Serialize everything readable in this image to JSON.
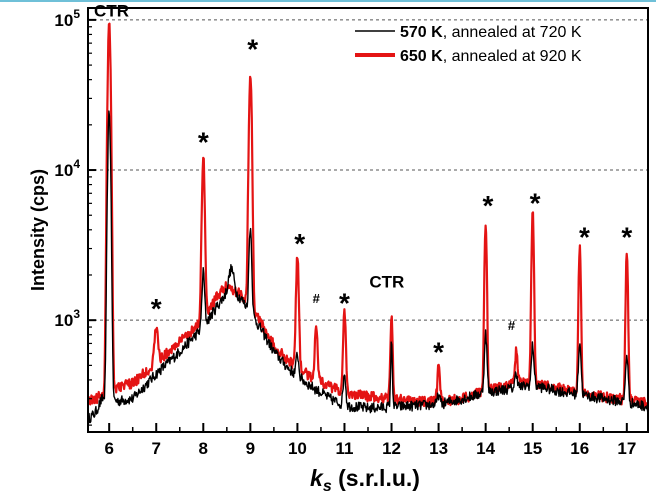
{
  "chart_data": {
    "type": "line",
    "xlabel_main": "k",
    "xlabel_sub": "s",
    "xlabel_rest": " (s.r.l.u.)",
    "ylabel": "Intensity (cps)",
    "xlim": [
      5.55,
      17.45
    ],
    "ylim": [
      180,
      120000
    ],
    "yscale": "log",
    "x_ticks": [
      "6",
      "7",
      "8",
      "9",
      "10",
      "11",
      "12",
      "13",
      "14",
      "15",
      "16",
      "17"
    ],
    "y_ticks": [
      {
        "value": 1000,
        "base": "10",
        "exp": "3"
      },
      {
        "value": 10000,
        "base": "10",
        "exp": "4"
      },
      {
        "value": 100000,
        "base": "10",
        "exp": "5"
      }
    ],
    "grid": {
      "horizontal_dashed": true
    },
    "legend_position": "top-right",
    "series": [
      {
        "name_bold": "570 K",
        "name_rest": ", annealed at 720 K",
        "color": "#000000",
        "baseline": [
          [
            5.55,
            220
          ],
          [
            5.7,
            240
          ],
          [
            5.85,
            300
          ],
          [
            6.2,
            290
          ],
          [
            6.5,
            300
          ],
          [
            7.0,
            440
          ],
          [
            7.5,
            620
          ],
          [
            8.0,
            900
          ],
          [
            8.3,
            1250
          ],
          [
            8.55,
            1600
          ],
          [
            8.8,
            1400
          ],
          [
            9.2,
            900
          ],
          [
            9.5,
            620
          ],
          [
            9.8,
            480
          ],
          [
            10.2,
            380
          ],
          [
            10.7,
            300
          ],
          [
            11.0,
            270
          ],
          [
            11.5,
            260
          ],
          [
            12.0,
            265
          ],
          [
            12.5,
            270
          ],
          [
            13.0,
            275
          ],
          [
            13.5,
            300
          ],
          [
            14.0,
            330
          ],
          [
            14.5,
            350
          ],
          [
            15.0,
            370
          ],
          [
            15.5,
            340
          ],
          [
            16.0,
            320
          ],
          [
            16.5,
            300
          ],
          [
            17.0,
            285
          ],
          [
            17.45,
            265
          ]
        ],
        "peaks": [
          [
            6.0,
            24000,
            0.03
          ],
          [
            8.0,
            2100,
            0.03
          ],
          [
            8.6,
            2200,
            0.06
          ],
          [
            9.0,
            4200,
            0.03
          ],
          [
            10.0,
            600,
            0.03
          ],
          [
            11.0,
            450,
            0.03
          ],
          [
            12.0,
            700,
            0.02
          ],
          [
            13.0,
            320,
            0.03
          ],
          [
            14.0,
            820,
            0.03
          ],
          [
            14.65,
            450,
            0.03
          ],
          [
            15.0,
            680,
            0.03
          ],
          [
            16.0,
            720,
            0.03
          ],
          [
            17.0,
            590,
            0.03
          ]
        ]
      },
      {
        "name_bold": "650 K",
        "name_rest": ", annealed at 920 K",
        "color": "#e41414",
        "baseline": [
          [
            5.55,
            290
          ],
          [
            5.8,
            310
          ],
          [
            6.2,
            360
          ],
          [
            6.5,
            380
          ],
          [
            7.0,
            520
          ],
          [
            7.5,
            720
          ],
          [
            8.0,
            1000
          ],
          [
            8.3,
            1450
          ],
          [
            8.5,
            1700
          ],
          [
            8.8,
            1500
          ],
          [
            9.2,
            1000
          ],
          [
            9.5,
            680
          ],
          [
            9.8,
            540
          ],
          [
            10.2,
            440
          ],
          [
            10.7,
            360
          ],
          [
            11.0,
            330
          ],
          [
            11.5,
            310
          ],
          [
            12.0,
            300
          ],
          [
            12.5,
            290
          ],
          [
            13.0,
            285
          ],
          [
            13.5,
            300
          ],
          [
            14.0,
            340
          ],
          [
            14.5,
            370
          ],
          [
            15.0,
            390
          ],
          [
            15.5,
            355
          ],
          [
            16.0,
            330
          ],
          [
            16.5,
            310
          ],
          [
            17.0,
            295
          ],
          [
            17.45,
            280
          ]
        ],
        "peaks": [
          [
            6.0,
            97000,
            0.03
          ],
          [
            6.3,
            370,
            0.04
          ],
          [
            7.0,
            900,
            0.04
          ],
          [
            8.0,
            12000,
            0.03
          ],
          [
            9.0,
            44000,
            0.03
          ],
          [
            10.0,
            2600,
            0.03
          ],
          [
            10.4,
            950,
            0.03
          ],
          [
            11.0,
            1100,
            0.03
          ],
          [
            12.0,
            1080,
            0.025
          ],
          [
            13.0,
            490,
            0.03
          ],
          [
            14.0,
            4500,
            0.025
          ],
          [
            14.65,
            620,
            0.03
          ],
          [
            15.0,
            5100,
            0.025
          ],
          [
            16.0,
            3000,
            0.025
          ],
          [
            17.0,
            2900,
            0.025
          ]
        ]
      }
    ],
    "annotations": [
      {
        "text": "CTR",
        "x": 6.05,
        "y": 105000,
        "size": "big"
      },
      {
        "text": "CTR",
        "x": 11.9,
        "y": 1650,
        "size": "big"
      },
      {
        "text": "*",
        "x": 7.0,
        "y": 1400,
        "size": "star"
      },
      {
        "text": "*",
        "x": 8.0,
        "y": 18000,
        "size": "star"
      },
      {
        "text": "*",
        "x": 9.05,
        "y": 75000,
        "size": "star"
      },
      {
        "text": "*",
        "x": 10.05,
        "y": 3800,
        "size": "star"
      },
      {
        "text": "#",
        "x": 10.4,
        "y": 1300,
        "size": "small"
      },
      {
        "text": "*",
        "x": 11.0,
        "y": 1530,
        "size": "star"
      },
      {
        "text": "*",
        "x": 13.0,
        "y": 720,
        "size": "star"
      },
      {
        "text": "*",
        "x": 14.05,
        "y": 6800,
        "size": "star"
      },
      {
        "text": "#",
        "x": 14.55,
        "y": 860,
        "size": "small"
      },
      {
        "text": "*",
        "x": 15.05,
        "y": 7100,
        "size": "star"
      },
      {
        "text": "*",
        "x": 16.1,
        "y": 4200,
        "size": "star"
      },
      {
        "text": "*",
        "x": 17.0,
        "y": 4200,
        "size": "star"
      }
    ]
  }
}
